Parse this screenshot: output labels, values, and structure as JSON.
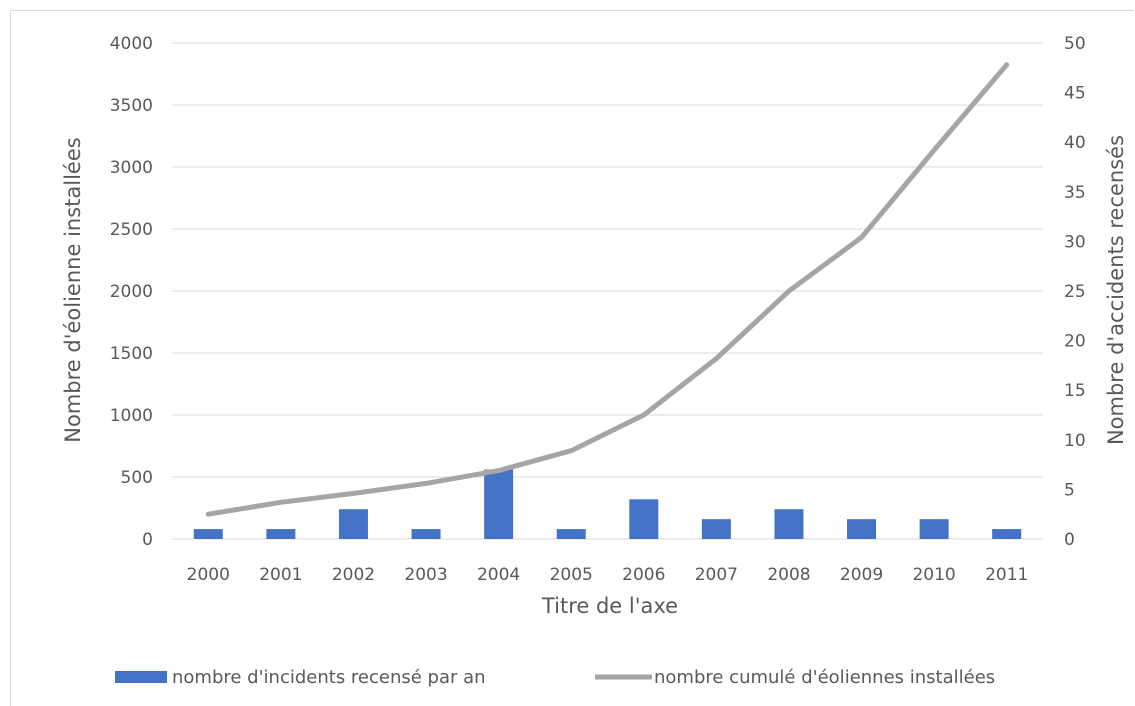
{
  "chart_data": {
    "type": "bar+line",
    "categories": [
      "2000",
      "2001",
      "2002",
      "2003",
      "2004",
      "2005",
      "2006",
      "2007",
      "2008",
      "2009",
      "2010",
      "2011"
    ],
    "series": [
      {
        "name": "nombre d'incidents recensé par an",
        "type": "bar",
        "axis": "left",
        "color": "#4472c4",
        "values": [
          80,
          80,
          240,
          80,
          560,
          80,
          320,
          160,
          240,
          160,
          160,
          80
        ]
      },
      {
        "name": "nombre cumulé d'éoliennes installées",
        "type": "line",
        "axis": "right",
        "color": "#a5a5a5",
        "values": [
          2.5,
          3.7,
          4.6,
          5.6,
          6.9,
          8.9,
          12.5,
          18.2,
          25.0,
          30.4,
          39.2,
          47.8
        ]
      }
    ],
    "xlabel": "Titre de l'axe",
    "ylabel": "Nombre d'éolienne installées",
    "y2label": "Nombre d'accidents recensés",
    "ylim": [
      0,
      4000
    ],
    "y2lim": [
      0,
      50
    ],
    "yticks": [
      "0",
      "500",
      "1000",
      "1500",
      "2000",
      "2500",
      "3000",
      "3500",
      "4000"
    ],
    "y2ticks": [
      "0",
      "5",
      "10",
      "15",
      "20",
      "25",
      "30",
      "35",
      "40",
      "45",
      "50"
    ],
    "grid": true,
    "legend": "bottom"
  }
}
